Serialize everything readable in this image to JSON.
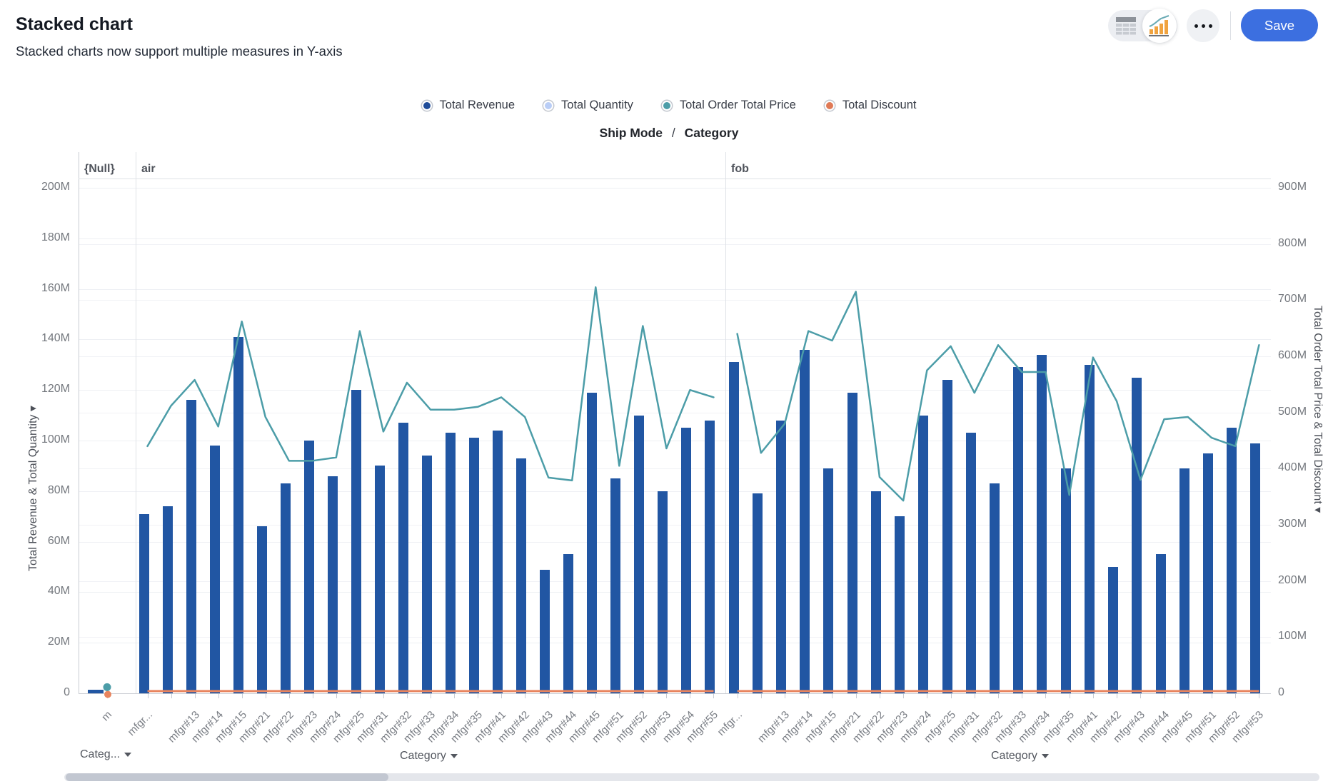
{
  "header": {
    "title": "Stacked chart",
    "subtitle": "Stacked charts now support multiple measures in Y-axis",
    "save_label": "Save"
  },
  "legend": {
    "items": [
      {
        "label": "Total Revenue",
        "color": "#1f4c99"
      },
      {
        "label": "Total Quantity",
        "color": "#b9cdf6"
      },
      {
        "label": "Total Order Total Price",
        "color": "#4c9da8"
      },
      {
        "label": "Total Discount",
        "color": "#e07a56"
      }
    ]
  },
  "dimension_label": {
    "primary": "Ship Mode",
    "separator": "/",
    "secondary": "Category"
  },
  "chart_data": {
    "type": "bar",
    "subtype": "grouped columns with line series, faceted by Ship Mode",
    "bar_series_name": "Total Revenue",
    "line_series_name": "Total Order Total Price",
    "flat_line_series_name": "Total Discount",
    "left_axis": {
      "title": "Total Revenue & Total Quantity ▾",
      "min": 0,
      "max": 200000000,
      "tick_labels": [
        "0",
        "20M",
        "40M",
        "60M",
        "80M",
        "100M",
        "120M",
        "140M",
        "160M",
        "180M",
        "200M"
      ]
    },
    "right_axis": {
      "title": "Total Order Total Price & Total Discount ▾",
      "min": 0,
      "max": 900000000,
      "tick_labels": [
        "0",
        "100M",
        "200M",
        "300M",
        "400M",
        "500M",
        "600M",
        "700M",
        "800M",
        "900M"
      ]
    },
    "colors": {
      "bar": "#2156a3",
      "line": "#4c9da8",
      "discount": "#e8845e"
    },
    "facets": [
      {
        "name": "{Null}",
        "categories": [
          "m"
        ],
        "total_revenue_M": [
          1.5
        ],
        "total_order_total_price_M": [
          11
        ],
        "total_discount_M": [
          0
        ]
      },
      {
        "name": "air",
        "categories": [
          "mfgr...",
          "",
          "mfgr#13",
          "mfgr#14",
          "mfgr#15",
          "mfgr#21",
          "mfgr#22",
          "mfgr#23",
          "mfgr#24",
          "mfgr#25",
          "mfgr#31",
          "mfgr#32",
          "mfgr#33",
          "mfgr#34",
          "mfgr#35",
          "mfgr#41",
          "mfgr#42",
          "mfgr#43",
          "mfgr#44",
          "mfgr#45",
          "mfgr#51",
          "mfgr#52",
          "mfgr#53",
          "mfgr#54",
          "mfgr#55"
        ],
        "total_revenue_M": [
          71,
          74,
          116,
          98,
          141,
          66,
          83,
          100,
          86,
          120,
          90,
          107,
          94,
          103,
          101,
          104,
          93,
          49,
          55,
          119,
          85,
          110,
          80,
          105,
          108
        ],
        "total_order_total_price_M": [
          440,
          512,
          558,
          475,
          662,
          492,
          414,
          414,
          420,
          645,
          466,
          553,
          505,
          505,
          510,
          527,
          492,
          384,
          379,
          723,
          405,
          654,
          436,
          540,
          527
        ],
        "total_discount_M": 4
      },
      {
        "name": "fob",
        "categories": [
          "mfgr...",
          "",
          "mfgr#13",
          "mfgr#14",
          "mfgr#15",
          "mfgr#21",
          "mfgr#22",
          "mfgr#23",
          "mfgr#24",
          "mfgr#25",
          "mfgr#31",
          "mfgr#32",
          "mfgr#33",
          "mfgr#34",
          "mfgr#35",
          "mfgr#41",
          "mfgr#42",
          "mfgr#43",
          "mfgr#44",
          "mfgr#45",
          "mfgr#51",
          "mfgr#52",
          "mfgr#53"
        ],
        "total_revenue_M": [
          131,
          79,
          108,
          136,
          89,
          119,
          80,
          70,
          110,
          124,
          103,
          83,
          129,
          134,
          89,
          130,
          50,
          125,
          55,
          89,
          95,
          105,
          99
        ],
        "total_order_total_price_M": [
          640,
          428,
          480,
          645,
          628,
          715,
          385,
          343,
          575,
          618,
          535,
          620,
          572,
          572,
          353,
          598,
          520,
          380,
          488,
          492,
          455,
          440,
          620
        ],
        "total_discount_M": 4
      }
    ]
  },
  "footer": {
    "null_dropdown_label": "Categ...",
    "category_dropdown_label": "Category"
  }
}
